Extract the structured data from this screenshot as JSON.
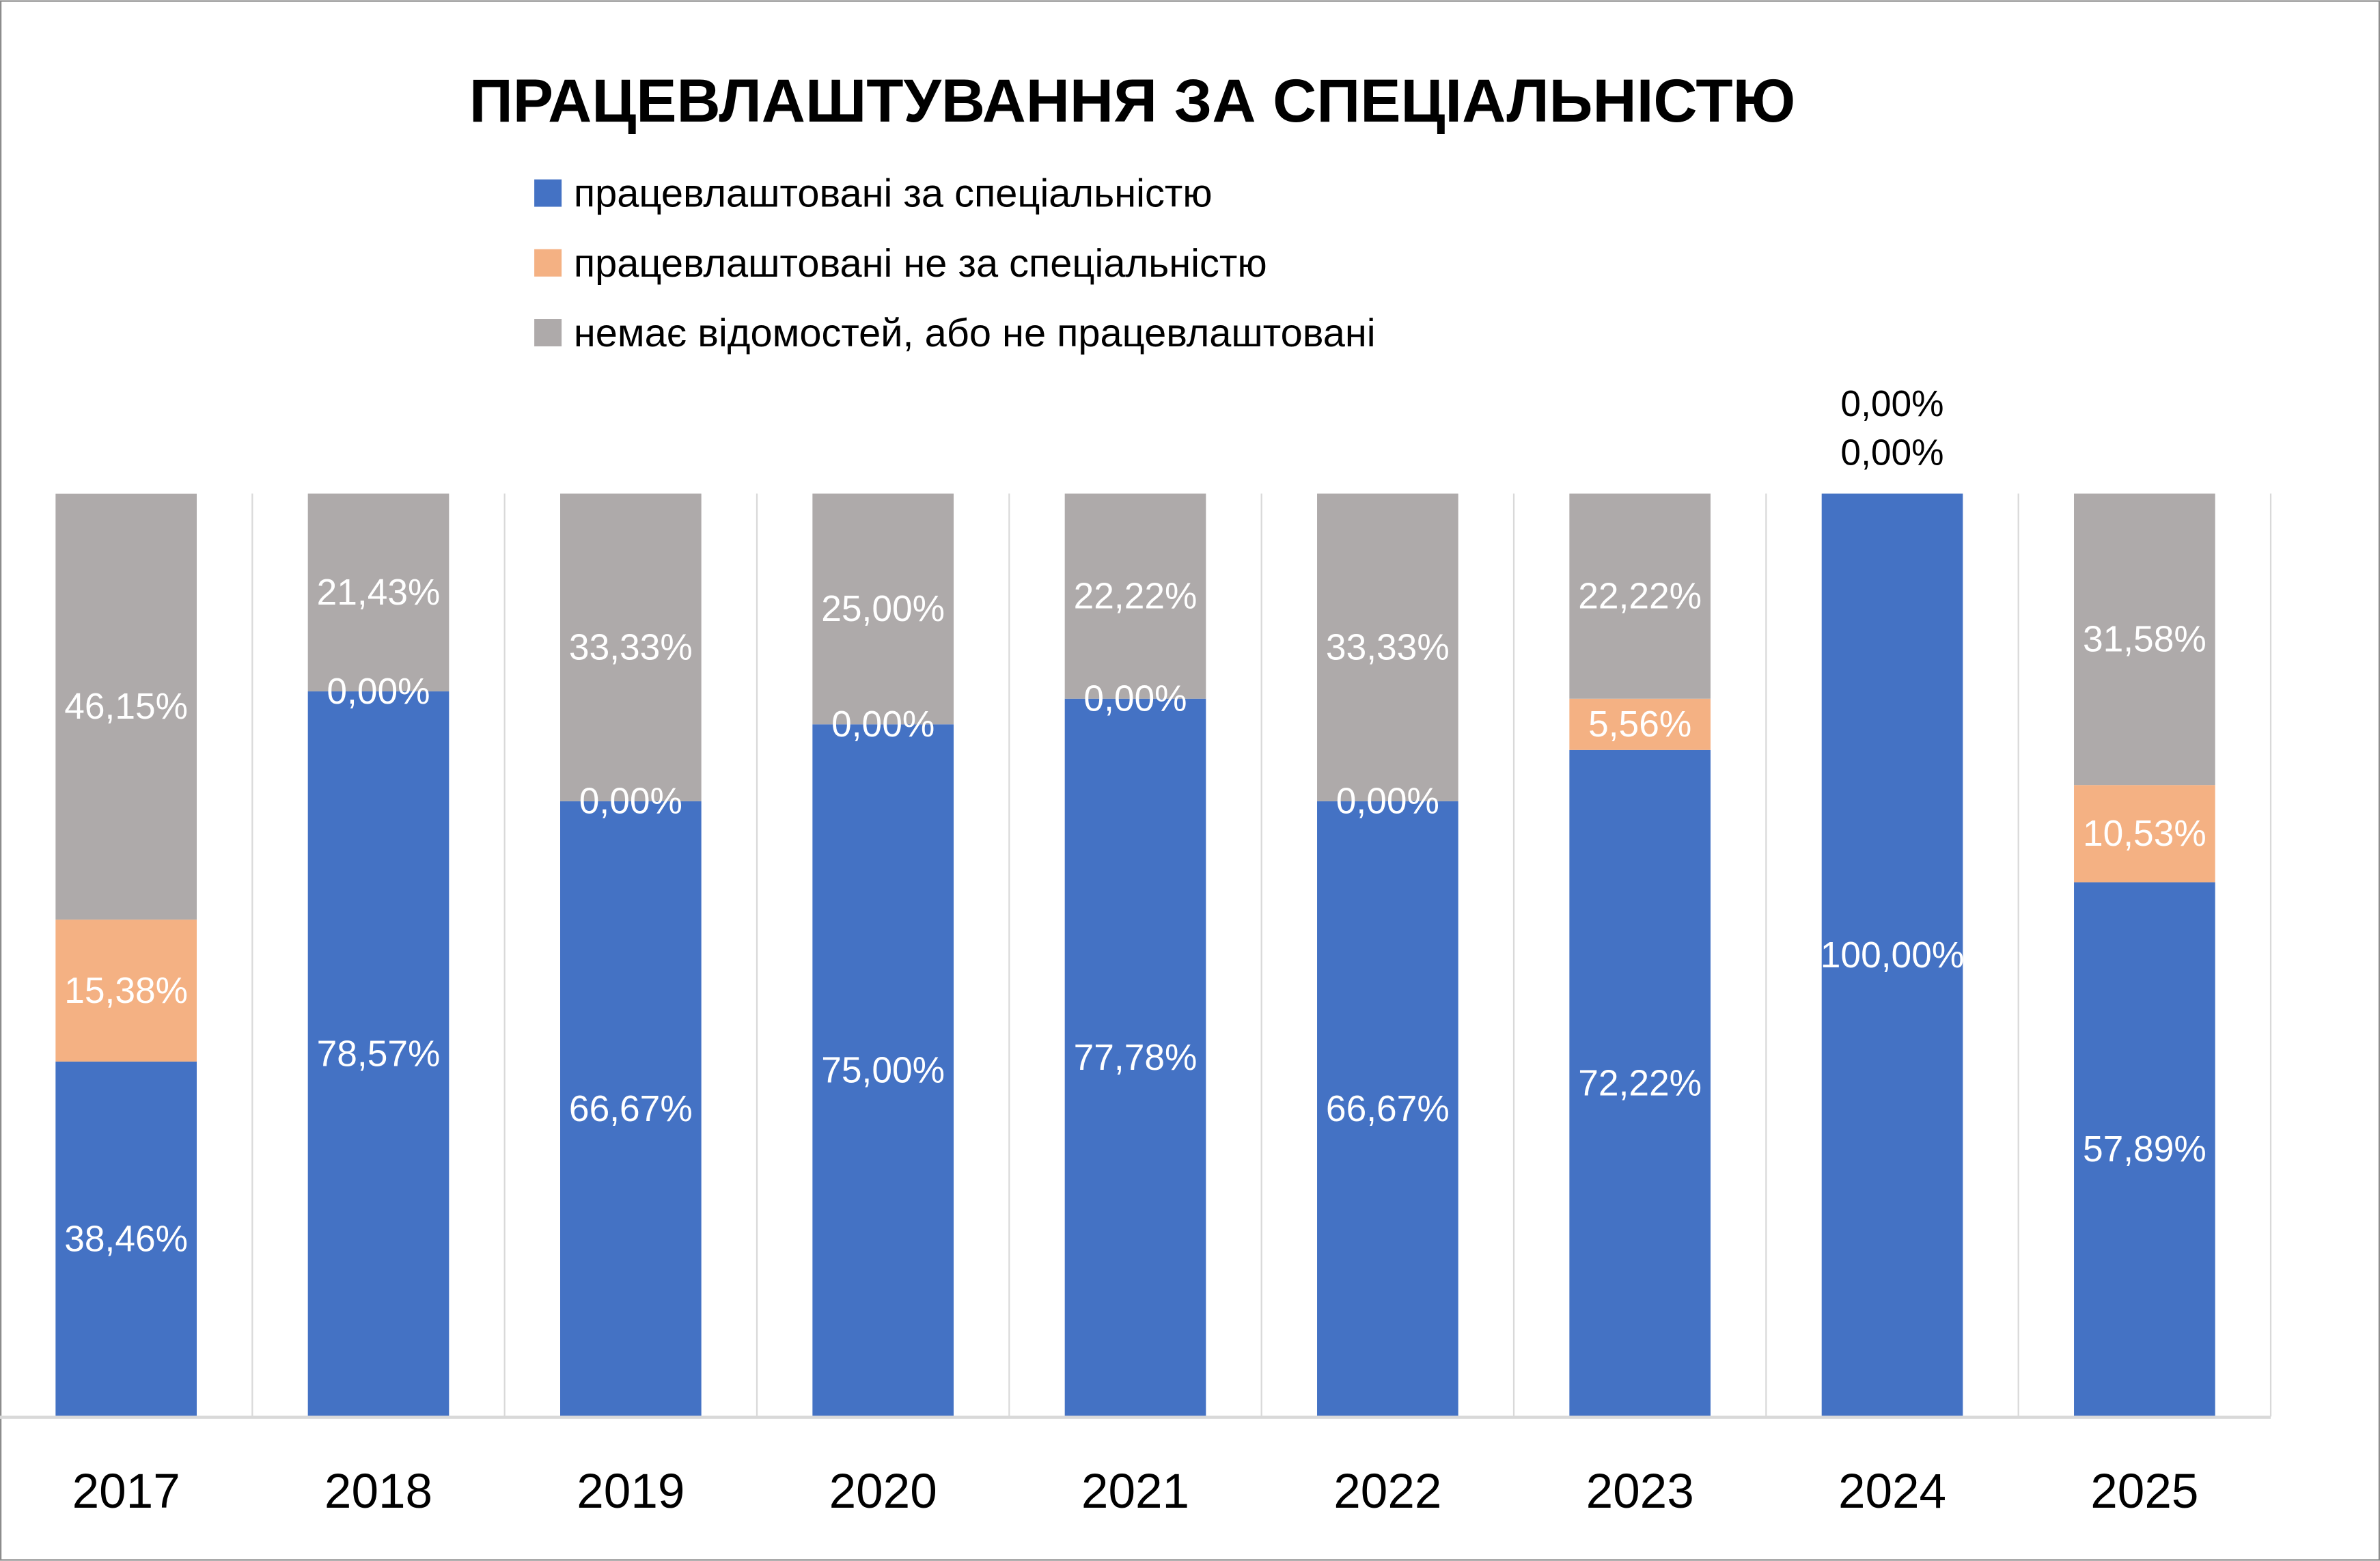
{
  "chart_data": {
    "type": "bar",
    "stacked": true,
    "title": "ПРАЦЕВЛАШТУВАННЯ ЗА СПЕЦІАЛЬНІСТЮ",
    "xlabel": "",
    "ylabel": "",
    "ylim": [
      0,
      100
    ],
    "legend_position": "top",
    "grid": "vertical separators",
    "categories": [
      "2017",
      "2018",
      "2019",
      "2020",
      "2021",
      "2022",
      "2023",
      "2024",
      "2025"
    ],
    "series": [
      {
        "name": "працевлаштовані за спеціальністю",
        "color": "#4472C4",
        "values": [
          38.46,
          78.57,
          66.67,
          75.0,
          77.78,
          66.67,
          72.22,
          100.0,
          57.89
        ],
        "labels": [
          "38,46%",
          "78,57%",
          "66,67%",
          "75,00%",
          "77,78%",
          "66,67%",
          "72,22%",
          "100,00%",
          "57,89%"
        ]
      },
      {
        "name": "працевлаштовані не за спеціальністю",
        "color": "#F4B183",
        "values": [
          15.38,
          0.0,
          0.0,
          0.0,
          0.0,
          0.0,
          5.56,
          0.0,
          10.53
        ],
        "labels": [
          "15,38%",
          "0,00%",
          "0,00%",
          "0,00%",
          "0,00%",
          "0,00%",
          "5,56%",
          "0,00%",
          "10,53%"
        ]
      },
      {
        "name": "немає відомостей, або не працевлаштовані",
        "color": "#AEAAAA",
        "values": [
          46.15,
          21.43,
          33.33,
          25.0,
          22.22,
          33.33,
          22.22,
          0.0,
          31.58
        ],
        "labels": [
          "46,15%",
          "21,43%",
          "33,33%",
          "25,00%",
          "22,22%",
          "33,33%",
          "22,22%",
          "0,00%",
          "31,58%"
        ]
      }
    ]
  }
}
